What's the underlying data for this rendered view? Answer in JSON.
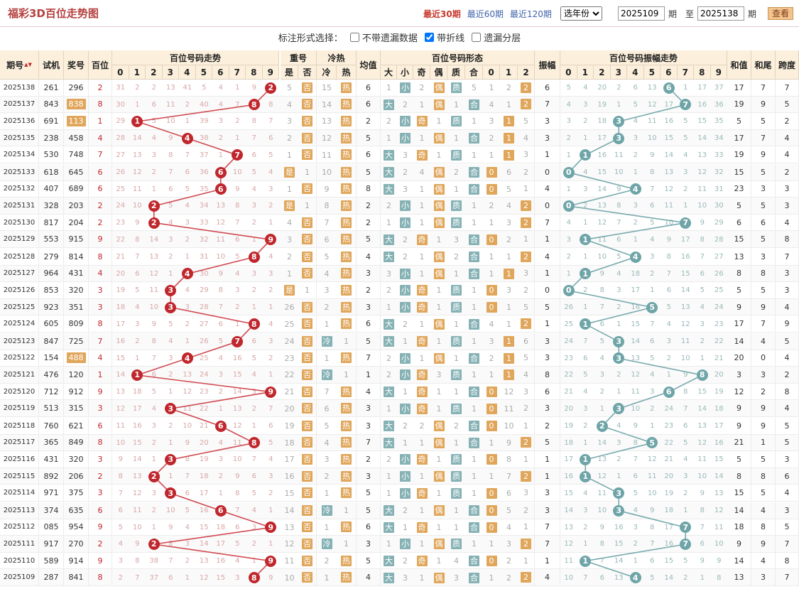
{
  "header": {
    "title": "福彩3D百位走势图",
    "nav": [
      "最近30期",
      "最近60期",
      "最近120期"
    ],
    "selected_nav": 0,
    "year_select": "选年份",
    "start_period": "2025109",
    "label_period": "期",
    "label_to": "至",
    "end_period": "2025138",
    "btn_query": "查看"
  },
  "options": {
    "label": "标注形式选择：",
    "items": [
      {
        "label": "不带遗漏数据",
        "checked": false
      },
      {
        "label": "带折线",
        "checked": true
      },
      {
        "label": "遗漏分层",
        "checked": false
      }
    ]
  },
  "columns": {
    "issue": "期号",
    "trial": "试机",
    "award": "奖号",
    "hundreds": "百位",
    "trend": "百位号码走势",
    "repeat": "重号",
    "repeat_yes": "是",
    "repeat_no": "否",
    "temp": "冷热",
    "cold": "冷",
    "hot": "热",
    "avg": "均值",
    "form": "百位号码形态",
    "big": "大",
    "small": "小",
    "odd": "奇",
    "even": "偶",
    "prime": "质",
    "comp": "合",
    "amp": "振幅",
    "amp_trend": "百位号码振幅走势",
    "sum": "和值",
    "sumtail": "和尾",
    "span": "跨度",
    "digits": [
      "0",
      "1",
      "2",
      "3",
      "4",
      "5",
      "6",
      "7",
      "8",
      "9"
    ],
    "route": [
      "0",
      "1",
      "2"
    ],
    "sort_icon": "▲▼"
  },
  "colors": {
    "ball_red": "#c0272d",
    "ball_teal": "#6fa5a8",
    "box_orange": "#e0a65b",
    "box_teal": "#86b2b5",
    "line_red": "#d04a52",
    "line_teal": "#78aaae"
  },
  "rows": [
    {
      "issue": "2025138",
      "trial": "261",
      "award": "296",
      "h": 2,
      "tm": [
        31,
        2,
        2,
        13,
        41,
        5,
        4,
        1,
        9,
        null
      ],
      "rep": 5,
      "tmp": 15,
      "avg": 6,
      "fm": [
        1,
        1,
        2,
        1,
        1,
        5,
        1,
        2,
        2
      ],
      "amp": 6,
      "am": [
        5,
        4,
        20,
        2,
        6,
        13,
        null,
        1,
        17,
        37
      ],
      "sum": 17,
      "tail": 7,
      "span": 7
    },
    {
      "issue": "2025137",
      "trial": "843",
      "award": "838",
      "h": 8,
      "tm": [
        30,
        1,
        6,
        11,
        2,
        40,
        4,
        7,
        null,
        8
      ],
      "rep": 4,
      "tmp": 14,
      "avg": 6,
      "fm": [
        0,
        2,
        1,
        1,
        1,
        1,
        4,
        1,
        2
      ],
      "amp": 7,
      "am": [
        4,
        3,
        19,
        1,
        5,
        12,
        17,
        null,
        16,
        36
      ],
      "sum": 19,
      "tail": 9,
      "span": 5
    },
    {
      "issue": "2025136",
      "trial": "691",
      "award": "113",
      "h": 1,
      "tm": [
        29,
        null,
        5,
        10,
        1,
        39,
        3,
        2,
        8,
        7
      ],
      "rep": 3,
      "tmp": 13,
      "avg": 2,
      "fm": [
        2,
        1,
        1,
        1,
        1,
        1,
        3,
        1,
        5
      ],
      "amp": 3,
      "am": [
        3,
        2,
        18,
        null,
        4,
        11,
        16,
        5,
        15,
        35
      ],
      "sum": 5,
      "tail": 5,
      "span": 2
    },
    {
      "issue": "2025135",
      "trial": "238",
      "award": "458",
      "h": 4,
      "tm": [
        28,
        14,
        4,
        9,
        null,
        38,
        2,
        1,
        7,
        6
      ],
      "rep": 2,
      "tmp": 12,
      "avg": 5,
      "fm": [
        1,
        1,
        1,
        1,
        1,
        1,
        2,
        1,
        4
      ],
      "amp": 3,
      "am": [
        2,
        1,
        17,
        null,
        3,
        10,
        15,
        5,
        14,
        34
      ],
      "sum": 17,
      "tail": 7,
      "span": 4
    },
    {
      "issue": "2025134",
      "trial": "530",
      "award": "748",
      "h": 7,
      "tm": [
        27,
        13,
        3,
        8,
        7,
        37,
        1,
        null,
        6,
        5
      ],
      "rep": 1,
      "tmp": 11,
      "avg": 6,
      "fm": [
        1,
        3,
        1,
        1,
        1,
        1,
        1,
        1,
        3
      ],
      "amp": 1,
      "am": [
        1,
        null,
        16,
        11,
        2,
        9,
        14,
        4,
        13,
        33
      ],
      "sum": 19,
      "tail": 9,
      "span": 4
    },
    {
      "issue": "2025133",
      "trial": "618",
      "award": "645",
      "h": 6,
      "tm": [
        26,
        12,
        2,
        7,
        6,
        36,
        null,
        10,
        5,
        4
      ],
      "rep": 0,
      "tmp": 10,
      "avg": 5,
      "fm": [
        1,
        2,
        4,
        1,
        2,
        1,
        1,
        6,
        2
      ],
      "amp": 0,
      "am": [
        null,
        4,
        15,
        10,
        1,
        8,
        13,
        3,
        12,
        32
      ],
      "sum": 15,
      "tail": 5,
      "span": 2
    },
    {
      "issue": "2025132",
      "trial": "407",
      "award": "689",
      "h": 6,
      "tm": [
        25,
        11,
        1,
        6,
        5,
        35,
        null,
        9,
        4,
        3
      ],
      "rep": 1,
      "tmp": 9,
      "avg": 8,
      "fm": [
        1,
        3,
        1,
        1,
        1,
        1,
        1,
        5,
        1
      ],
      "amp": 4,
      "am": [
        1,
        3,
        14,
        9,
        null,
        7,
        12,
        2,
        11,
        31
      ],
      "sum": 23,
      "tail": 3,
      "span": 3
    },
    {
      "issue": "2025131",
      "trial": "328",
      "award": "203",
      "h": 2,
      "tm": [
        24,
        10,
        null,
        5,
        4,
        34,
        13,
        8,
        3,
        2
      ],
      "rep": 0,
      "tmp": 8,
      "avg": 2,
      "fm": [
        2,
        1,
        1,
        1,
        1,
        1,
        2,
        4,
        1
      ],
      "amp": 0,
      "am": [
        null,
        2,
        13,
        8,
        3,
        6,
        11,
        1,
        10,
        30
      ],
      "sum": 5,
      "tail": 5,
      "span": 3
    },
    {
      "issue": "2025130",
      "trial": "817",
      "award": "204",
      "h": 2,
      "tm": [
        23,
        9,
        null,
        4,
        3,
        33,
        12,
        7,
        2,
        1
      ],
      "rep": 4,
      "tmp": 7,
      "avg": 2,
      "fm": [
        1,
        1,
        1,
        1,
        1,
        1,
        1,
        3,
        1
      ],
      "amp": 7,
      "am": [
        4,
        1,
        12,
        7,
        2,
        5,
        10,
        null,
        9,
        29
      ],
      "sum": 6,
      "tail": 6,
      "span": 4
    },
    {
      "issue": "2025129",
      "trial": "553",
      "award": "915",
      "h": 9,
      "tm": [
        22,
        8,
        14,
        3,
        2,
        32,
        11,
        6,
        1,
        null
      ],
      "rep": 3,
      "tmp": 6,
      "avg": 5,
      "fm": [
        1,
        2,
        1,
        1,
        3,
        1,
        1,
        2,
        1
      ],
      "amp": 1,
      "am": [
        3,
        null,
        11,
        6,
        1,
        4,
        9,
        17,
        8,
        28
      ],
      "sum": 15,
      "tail": 5,
      "span": 8
    },
    {
      "issue": "2025128",
      "trial": "279",
      "award": "814",
      "h": 8,
      "tm": [
        21,
        7,
        13,
        2,
        1,
        31,
        10,
        5,
        null,
        4
      ],
      "rep": 2,
      "tmp": 5,
      "avg": 4,
      "fm": [
        1,
        2,
        1,
        1,
        2,
        1,
        1,
        1,
        2
      ],
      "amp": 4,
      "am": [
        2,
        1,
        10,
        5,
        null,
        3,
        8,
        16,
        7,
        27
      ],
      "sum": 13,
      "tail": 3,
      "span": 7
    },
    {
      "issue": "2025127",
      "trial": "964",
      "award": "431",
      "h": 4,
      "tm": [
        20,
        6,
        12,
        1,
        null,
        30,
        9,
        4,
        3,
        3
      ],
      "rep": 1,
      "tmp": 4,
      "avg": 3,
      "fm": [
        3,
        1,
        1,
        1,
        1,
        1,
        1,
        1,
        3
      ],
      "amp": 1,
      "am": [
        1,
        null,
        9,
        4,
        18,
        2,
        7,
        15,
        6,
        26
      ],
      "sum": 8,
      "tail": 8,
      "span": 3
    },
    {
      "issue": "2025126",
      "trial": "853",
      "award": "320",
      "h": 3,
      "tm": [
        19,
        5,
        11,
        null,
        4,
        29,
        8,
        3,
        2,
        2
      ],
      "rep": 0,
      "tmp": 3,
      "avg": 2,
      "fm": [
        2,
        1,
        1,
        1,
        2,
        1,
        1,
        3,
        2
      ],
      "amp": 0,
      "am": [
        null,
        2,
        8,
        3,
        17,
        1,
        6,
        14,
        5,
        25
      ],
      "sum": 5,
      "tail": 5,
      "span": 3
    },
    {
      "issue": "2025125",
      "trial": "923",
      "award": "351",
      "h": 3,
      "tm": [
        18,
        4,
        10,
        null,
        3,
        28,
        7,
        2,
        1,
        1
      ],
      "rep": 26,
      "tmp": 2,
      "avg": 3,
      "fm": [
        1,
        1,
        1,
        1,
        1,
        1,
        1,
        1,
        5
      ],
      "amp": 5,
      "am": [
        26,
        1,
        7,
        2,
        16,
        null,
        5,
        13,
        4,
        24
      ],
      "sum": 9,
      "tail": 9,
      "span": 4
    },
    {
      "issue": "2025124",
      "trial": "605",
      "award": "809",
      "h": 8,
      "tm": [
        17,
        3,
        9,
        5,
        2,
        27,
        6,
        1,
        null,
        4
      ],
      "rep": 25,
      "tmp": 1,
      "avg": 6,
      "fm": [
        1,
        2,
        1,
        1,
        1,
        1,
        4,
        1,
        2
      ],
      "amp": 1,
      "am": [
        25,
        null,
        6,
        1,
        15,
        7,
        4,
        12,
        3,
        23
      ],
      "sum": 17,
      "tail": 7,
      "span": 9
    },
    {
      "issue": "2025123",
      "trial": "847",
      "award": "725",
      "h": 7,
      "tm": [
        16,
        2,
        8,
        4,
        1,
        26,
        5,
        null,
        6,
        3
      ],
      "rep": 24,
      "tmp": 0,
      "avg": 5,
      "fm": [
        1,
        1,
        1,
        1,
        1,
        1,
        3,
        1,
        6
      ],
      "amp": 3,
      "am": [
        24,
        7,
        5,
        null,
        14,
        6,
        3,
        11,
        2,
        22
      ],
      "sum": 14,
      "tail": 4,
      "span": 5
    },
    {
      "issue": "2025122",
      "trial": "154",
      "award": "488",
      "h": 4,
      "tm": [
        15,
        1,
        7,
        3,
        null,
        25,
        4,
        16,
        5,
        2
      ],
      "rep": 23,
      "tmp": 1,
      "avg": 7,
      "fm": [
        2,
        1,
        1,
        1,
        1,
        1,
        2,
        1,
        5
      ],
      "amp": 3,
      "am": [
        23,
        6,
        4,
        null,
        13,
        5,
        2,
        10,
        1,
        21
      ],
      "sum": 20,
      "tail": 0,
      "span": 4
    },
    {
      "issue": "2025121",
      "trial": "476",
      "award": "120",
      "h": 1,
      "tm": [
        14,
        null,
        6,
        2,
        13,
        24,
        3,
        15,
        4,
        1
      ],
      "rep": 22,
      "tmp": 0,
      "avg": 1,
      "fm": [
        2,
        1,
        1,
        3,
        1,
        1,
        1,
        1,
        4
      ],
      "amp": 8,
      "am": [
        22,
        5,
        3,
        2,
        12,
        4,
        1,
        9,
        null,
        20
      ],
      "sum": 3,
      "tail": 3,
      "span": 2
    },
    {
      "issue": "2025120",
      "trial": "712",
      "award": "912",
      "h": 9,
      "tm": [
        13,
        18,
        5,
        1,
        12,
        23,
        2,
        14,
        3,
        null
      ],
      "rep": 21,
      "tmp": 7,
      "avg": 4,
      "fm": [
        1,
        1,
        1,
        1,
        1,
        1,
        1,
        12,
        3
      ],
      "amp": 6,
      "am": [
        21,
        4,
        2,
        1,
        11,
        3,
        null,
        8,
        15,
        19
      ],
      "sum": 12,
      "tail": 2,
      "span": 8
    },
    {
      "issue": "2025119",
      "trial": "513",
      "award": "315",
      "h": 3,
      "tm": [
        12,
        17,
        4,
        null,
        11,
        22,
        1,
        13,
        2,
        7
      ],
      "rep": 20,
      "tmp": 6,
      "avg": 3,
      "fm": [
        1,
        1,
        1,
        1,
        1,
        1,
        1,
        11,
        2
      ],
      "amp": 3,
      "am": [
        20,
        3,
        1,
        null,
        10,
        2,
        24,
        7,
        14,
        18
      ],
      "sum": 9,
      "tail": 9,
      "span": 4
    },
    {
      "issue": "2025118",
      "trial": "760",
      "award": "621",
      "h": 6,
      "tm": [
        11,
        16,
        3,
        2,
        10,
        21,
        null,
        12,
        1,
        6
      ],
      "rep": 19,
      "tmp": 5,
      "avg": 3,
      "fm": [
        1,
        2,
        2,
        1,
        2,
        1,
        1,
        10,
        1
      ],
      "amp": 2,
      "am": [
        19,
        2,
        null,
        4,
        9,
        1,
        23,
        6,
        13,
        17
      ],
      "sum": 9,
      "tail": 9,
      "span": 5
    },
    {
      "issue": "2025117",
      "trial": "365",
      "award": "849",
      "h": 8,
      "tm": [
        10,
        15,
        2,
        1,
        9,
        20,
        4,
        11,
        null,
        5
      ],
      "rep": 18,
      "tmp": 4,
      "avg": 7,
      "fm": [
        1,
        1,
        1,
        1,
        1,
        1,
        1,
        9,
        2
      ],
      "amp": 5,
      "am": [
        18,
        1,
        14,
        3,
        8,
        null,
        22,
        5,
        12,
        16
      ],
      "sum": 21,
      "tail": 1,
      "span": 5
    },
    {
      "issue": "2025116",
      "trial": "431",
      "award": "320",
      "h": 3,
      "tm": [
        9,
        14,
        1,
        null,
        8,
        19,
        3,
        10,
        7,
        4
      ],
      "rep": 17,
      "tmp": 3,
      "avg": 2,
      "fm": [
        2,
        1,
        1,
        1,
        1,
        1,
        1,
        8,
        1
      ],
      "amp": 1,
      "am": [
        17,
        null,
        13,
        2,
        7,
        12,
        21,
        4,
        11,
        15
      ],
      "sum": 5,
      "tail": 5,
      "span": 3
    },
    {
      "issue": "2025115",
      "trial": "892",
      "award": "206",
      "h": 2,
      "tm": [
        8,
        13,
        null,
        1,
        7,
        18,
        2,
        9,
        6,
        3
      ],
      "rep": 16,
      "tmp": 2,
      "avg": 3,
      "fm": [
        1,
        1,
        1,
        1,
        1,
        1,
        1,
        7,
        2
      ],
      "amp": 1,
      "am": [
        16,
        null,
        12,
        1,
        6,
        11,
        20,
        3,
        10,
        14
      ],
      "sum": 8,
      "tail": 8,
      "span": 6
    },
    {
      "issue": "2025114",
      "trial": "971",
      "award": "375",
      "h": 3,
      "tm": [
        7,
        12,
        3,
        null,
        6,
        17,
        1,
        8,
        5,
        2
      ],
      "rep": 15,
      "tmp": 1,
      "avg": 5,
      "fm": [
        1,
        1,
        1,
        1,
        1,
        1,
        1,
        6,
        3
      ],
      "amp": 3,
      "am": [
        15,
        4,
        11,
        null,
        5,
        10,
        19,
        2,
        9,
        13
      ],
      "sum": 15,
      "tail": 5,
      "span": 4
    },
    {
      "issue": "2025113",
      "trial": "374",
      "award": "635",
      "h": 6,
      "tm": [
        6,
        11,
        2,
        10,
        5,
        16,
        null,
        7,
        4,
        1
      ],
      "rep": 14,
      "tmp": 0,
      "avg": 5,
      "fm": [
        1,
        2,
        1,
        1,
        1,
        1,
        1,
        5,
        2
      ],
      "amp": 3,
      "am": [
        14,
        3,
        10,
        null,
        4,
        9,
        18,
        1,
        8,
        12
      ],
      "sum": 14,
      "tail": 4,
      "span": 3
    },
    {
      "issue": "2025112",
      "trial": "085",
      "award": "954",
      "h": 9,
      "tm": [
        5,
        10,
        1,
        9,
        4,
        15,
        18,
        6,
        3,
        null
      ],
      "rep": 13,
      "tmp": 1,
      "avg": 6,
      "fm": [
        1,
        1,
        1,
        1,
        1,
        1,
        1,
        4,
        1
      ],
      "amp": 7,
      "am": [
        13,
        2,
        9,
        16,
        3,
        8,
        17,
        null,
        7,
        11
      ],
      "sum": 18,
      "tail": 8,
      "span": 5
    },
    {
      "issue": "2025111",
      "trial": "917",
      "award": "270",
      "h": 2,
      "tm": [
        4,
        9,
        null,
        8,
        3,
        14,
        17,
        5,
        2,
        1
      ],
      "rep": 12,
      "tmp": 0,
      "avg": 3,
      "fm": [
        1,
        1,
        1,
        1,
        1,
        1,
        1,
        3,
        2
      ],
      "amp": 7,
      "am": [
        12,
        1,
        8,
        15,
        2,
        7,
        16,
        null,
        6,
        10
      ],
      "sum": 9,
      "tail": 9,
      "span": 7
    },
    {
      "issue": "2025110",
      "trial": "589",
      "award": "914",
      "h": 9,
      "tm": [
        3,
        8,
        38,
        7,
        2,
        13,
        16,
        4,
        1,
        null
      ],
      "rep": 11,
      "tmp": 2,
      "avg": 5,
      "fm": [
        1,
        2,
        1,
        1,
        4,
        1,
        1,
        2,
        1
      ],
      "amp": 1,
      "am": [
        11,
        null,
        7,
        14,
        1,
        6,
        15,
        5,
        9,
        9
      ],
      "sum": 14,
      "tail": 4,
      "span": 8
    },
    {
      "issue": "2025109",
      "trial": "287",
      "award": "841",
      "h": 8,
      "tm": [
        2,
        7,
        37,
        6,
        1,
        12,
        15,
        3,
        null,
        9
      ],
      "rep": 10,
      "tmp": 1,
      "avg": 4,
      "fm": [
        1,
        3,
        1,
        1,
        3,
        1,
        1,
        2,
        1
      ],
      "amp": 4,
      "am": [
        10,
        7,
        6,
        13,
        null,
        5,
        14,
        2,
        1,
        8
      ],
      "sum": 13,
      "tail": 3,
      "span": 7
    }
  ]
}
